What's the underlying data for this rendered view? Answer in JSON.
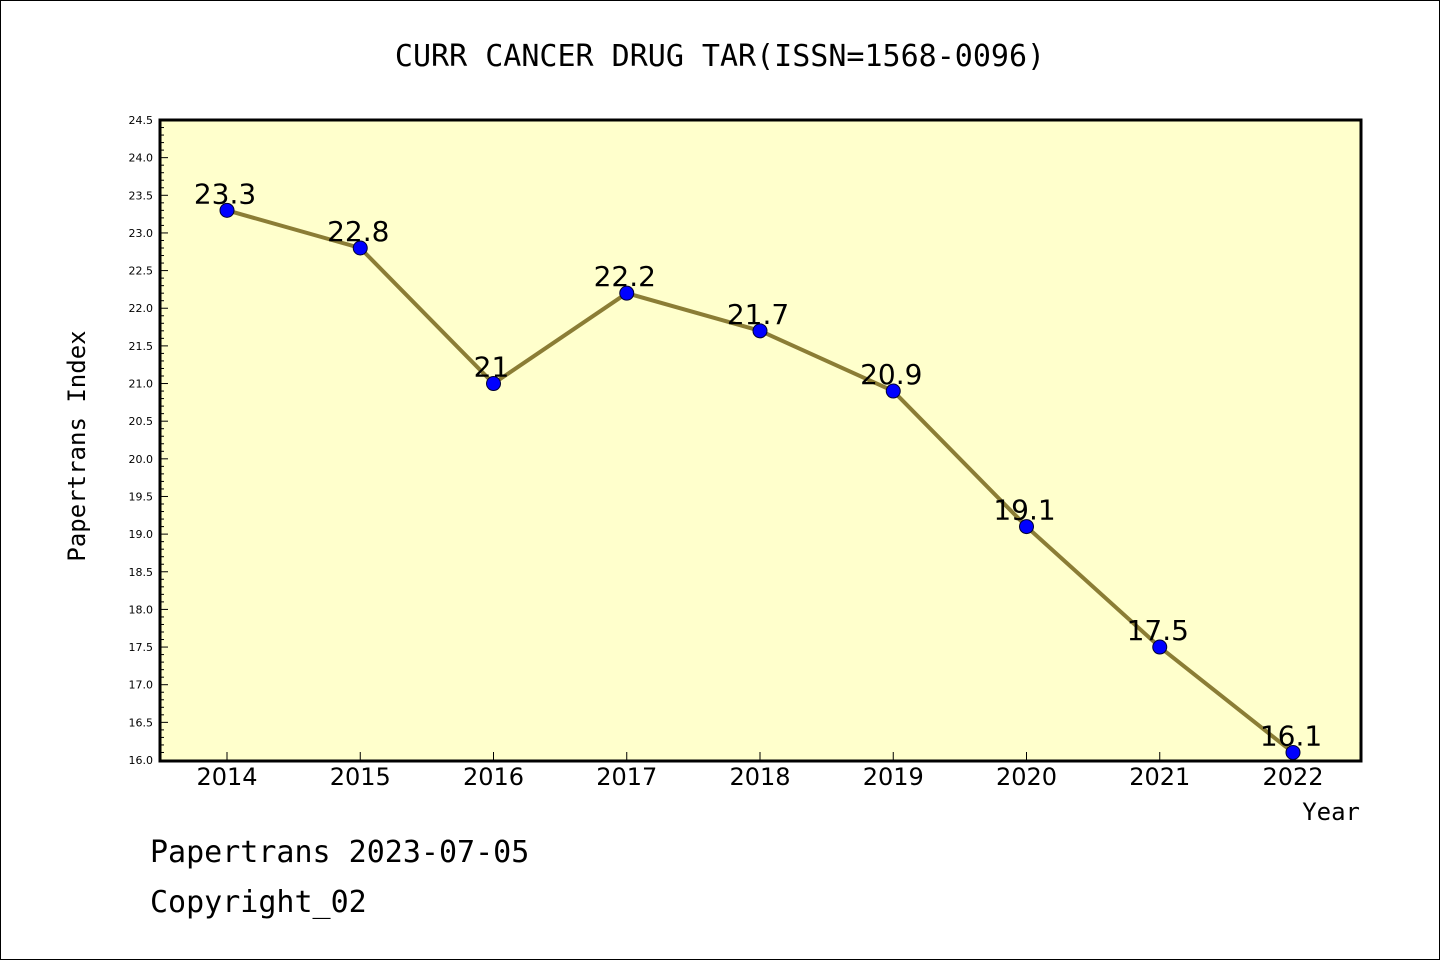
{
  "chart_data": {
    "type": "line",
    "title": "CURR CANCER DRUG TAR(ISSN=1568-0096)",
    "xlabel": "Year",
    "ylabel": "Papertrans Index",
    "categories": [
      "2014",
      "2015",
      "2016",
      "2017",
      "2018",
      "2019",
      "2020",
      "2021",
      "2022"
    ],
    "values": [
      23.3,
      22.8,
      21.0,
      22.2,
      21.7,
      20.9,
      19.1,
      17.5,
      16.1
    ],
    "data_labels": [
      "23.3",
      "22.8",
      "21",
      "22.2",
      "21.7",
      "20.9",
      "19.1",
      "17.5",
      "16.1"
    ],
    "ylim": [
      16.0,
      24.5
    ],
    "y_ticks": [
      "16.0",
      "16.5",
      "17.0",
      "17.5",
      "18.0",
      "18.5",
      "19.0",
      "19.5",
      "20.0",
      "20.5",
      "21.0",
      "21.5",
      "22.0",
      "22.5",
      "23.0",
      "23.5",
      "24.0",
      "24.5"
    ],
    "grid": false,
    "colors": {
      "plot_background": "#ffffcc",
      "line": "#8b7d35",
      "marker": "#0000ff"
    }
  },
  "footer": {
    "date_line": "Papertrans 2023-07-05",
    "copyright": "Copyright_02"
  }
}
